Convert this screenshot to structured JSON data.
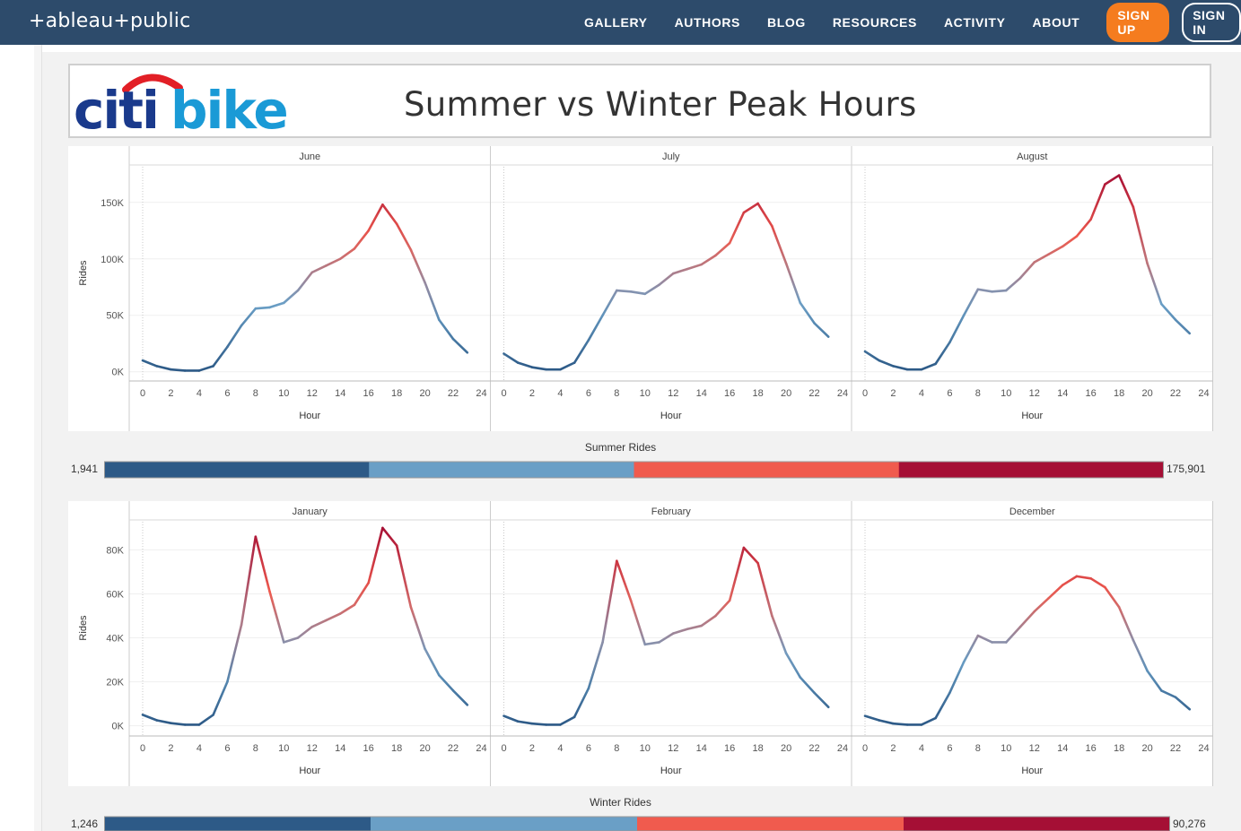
{
  "app": {
    "logo": "+ableau+public",
    "nav": [
      "GALLERY",
      "AUTHORS",
      "BLOG",
      "RESOURCES",
      "ACTIVITY",
      "ABOUT"
    ],
    "signup_label": "SIGN UP",
    "signin_label": "SIGN IN"
  },
  "header": {
    "brand_citi": "citi",
    "brand_bike": "bike",
    "title": "Summer vs Winter Peak Hours"
  },
  "colors": {
    "topbar": "#2d4b6b",
    "signup": "#f57c1f",
    "citi_blue": "#1a3a8c",
    "citi_arc": "#e21f26",
    "bike_blue": "#1a9ad6",
    "ramp": [
      "#2d5a87",
      "#6a9fc6",
      "#f05b4e",
      "#a50f35"
    ]
  },
  "summer_legend": {
    "title": "Summer Rides",
    "min": "1,941",
    "max": "175,901",
    "min_value": 1941,
    "max_value": 175901
  },
  "winter_legend": {
    "title": "Winter Rides",
    "min": "1,246",
    "max": "90,276",
    "min_value": 1246,
    "max_value": 90276
  },
  "chart_data": [
    {
      "type": "line",
      "group": "summer",
      "xlabel": "Hour",
      "ylabel": "Rides",
      "x_ticks": [
        "0",
        "2",
        "4",
        "6",
        "8",
        "10",
        "12",
        "14",
        "16",
        "18",
        "20",
        "22",
        "24"
      ],
      "y_ticks": [
        "0K",
        "50K",
        "100K",
        "150K"
      ],
      "y_tick_values": [
        0,
        50000,
        100000,
        150000
      ],
      "xlim": [
        0,
        24
      ],
      "ylim": [
        -5000,
        180000
      ],
      "color_range": [
        1941,
        175901
      ],
      "x": [
        0,
        1,
        2,
        3,
        4,
        5,
        6,
        7,
        8,
        9,
        10,
        11,
        12,
        13,
        14,
        15,
        16,
        17,
        18,
        19,
        20,
        21,
        22,
        23
      ],
      "series": [
        {
          "name": "June",
          "values": [
            10000,
            5000,
            2000,
            1000,
            1000,
            5000,
            22000,
            41000,
            56000,
            57000,
            61000,
            72000,
            88000,
            94000,
            100000,
            109000,
            125000,
            148000,
            131000,
            108000,
            79000,
            46000,
            29000,
            17000
          ]
        },
        {
          "name": "July",
          "values": [
            16000,
            8000,
            4000,
            2000,
            2000,
            8000,
            28000,
            50000,
            72000,
            71000,
            69000,
            77000,
            87000,
            91000,
            95000,
            103000,
            114000,
            141000,
            149000,
            129000,
            96000,
            61000,
            43000,
            31000
          ]
        },
        {
          "name": "August",
          "values": [
            18000,
            10000,
            5000,
            2000,
            2000,
            7000,
            26000,
            50000,
            73000,
            71000,
            72000,
            83000,
            97000,
            104000,
            111000,
            120000,
            135000,
            166000,
            174000,
            146000,
            96000,
            60000,
            46000,
            34000
          ]
        }
      ]
    },
    {
      "type": "line",
      "group": "winter",
      "xlabel": "Hour",
      "ylabel": "Rides",
      "x_ticks": [
        "0",
        "2",
        "4",
        "6",
        "8",
        "10",
        "12",
        "14",
        "16",
        "18",
        "20",
        "22",
        "24"
      ],
      "y_ticks": [
        "0K",
        "20K",
        "40K",
        "60K",
        "80K"
      ],
      "y_tick_values": [
        0,
        20000,
        40000,
        60000,
        80000
      ],
      "xlim": [
        0,
        24
      ],
      "ylim": [
        -3000,
        92000
      ],
      "color_range": [
        1246,
        90276
      ],
      "x": [
        0,
        1,
        2,
        3,
        4,
        5,
        6,
        7,
        8,
        9,
        10,
        11,
        12,
        13,
        14,
        15,
        16,
        17,
        18,
        19,
        20,
        21,
        22,
        23
      ],
      "series": [
        {
          "name": "January",
          "values": [
            5000,
            2500,
            1200,
            500,
            500,
            5000,
            20000,
            46000,
            86000,
            61000,
            38000,
            40000,
            45000,
            48000,
            51000,
            55000,
            65000,
            90000,
            82000,
            54000,
            35000,
            23000,
            16000,
            9500
          ]
        },
        {
          "name": "February",
          "values": [
            4500,
            2000,
            1000,
            500,
            500,
            4000,
            17000,
            38000,
            75000,
            57000,
            37000,
            38000,
            42000,
            44000,
            45500,
            50000,
            57000,
            81000,
            74000,
            50000,
            33000,
            22000,
            15000,
            8500
          ]
        },
        {
          "name": "December",
          "values": [
            4500,
            2500,
            1000,
            500,
            500,
            3500,
            15000,
            29000,
            41000,
            38000,
            38000,
            45000,
            52000,
            58000,
            64000,
            68000,
            67000,
            63000,
            54000,
            39000,
            25000,
            16000,
            13000,
            7500
          ]
        }
      ]
    }
  ]
}
